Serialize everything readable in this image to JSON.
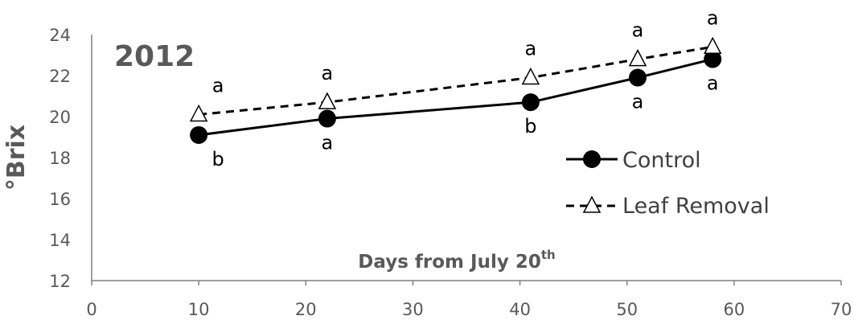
{
  "chart_data": {
    "type": "line",
    "panel_label": "2012",
    "xlabel": "Days from July 20",
    "xlabel_sup": "th",
    "ylabel": "°Brix",
    "xlim": [
      0,
      70
    ],
    "ylim": [
      12,
      24
    ],
    "x_ticks": [
      0,
      10,
      20,
      30,
      40,
      50,
      60,
      70
    ],
    "y_ticks": [
      12,
      14,
      16,
      18,
      20,
      22,
      24
    ],
    "grid": false,
    "legend_position": "right",
    "series": [
      {
        "name": "Control",
        "style": "solid",
        "marker": "circle",
        "color": "#000000",
        "x": [
          10,
          22,
          41,
          51,
          58
        ],
        "y": [
          19.1,
          19.9,
          20.7,
          21.9,
          22.8
        ],
        "significance": [
          "b",
          "a",
          "b",
          "a",
          "a"
        ]
      },
      {
        "name": "Leaf Removal",
        "style": "dashed",
        "marker": "triangle",
        "color": "#000000",
        "x": [
          10,
          22,
          41,
          51,
          58
        ],
        "y": [
          20.1,
          20.7,
          21.9,
          22.8,
          23.4
        ],
        "significance": [
          "a",
          "a",
          "a",
          "a",
          "a"
        ]
      }
    ]
  }
}
